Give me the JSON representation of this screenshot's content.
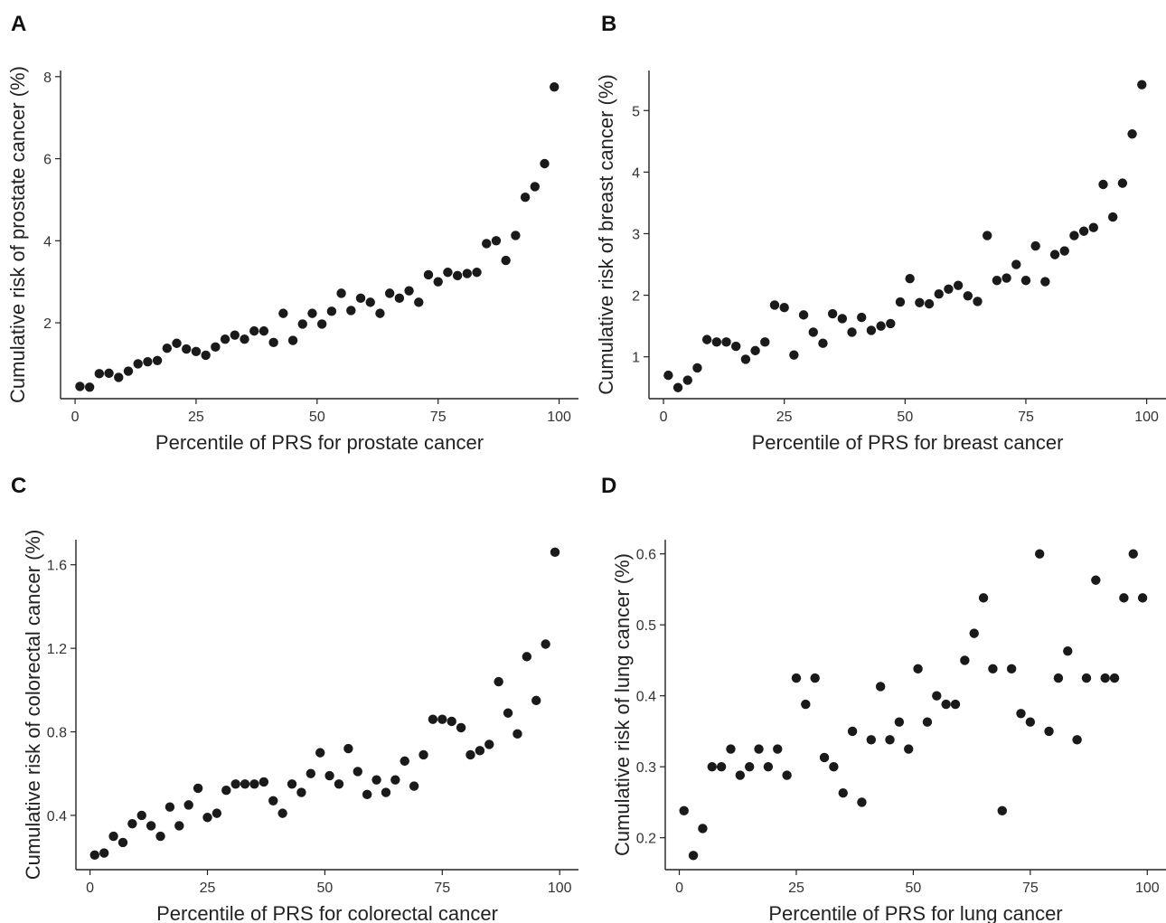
{
  "chart_data": [
    {
      "panel": "A",
      "type": "scatter",
      "xlabel": "Percentile of PRS for prostate cancer",
      "ylabel": "Cumulative risk of prostate cancer (%)",
      "xlim": [
        -3,
        104
      ],
      "ylim": [
        0.15,
        8.15
      ],
      "xticks": [
        0,
        25,
        50,
        75,
        100
      ],
      "yticks": [
        2,
        4,
        6,
        8
      ],
      "grid": false,
      "x": [
        1,
        3,
        5,
        7,
        9,
        11,
        13,
        15,
        17,
        19,
        21,
        23,
        25,
        27,
        29,
        31,
        33,
        35,
        37,
        39,
        41,
        43,
        45,
        47,
        49,
        51,
        53,
        55,
        57,
        59,
        61,
        63,
        65,
        67,
        69,
        71,
        73,
        75,
        77,
        79,
        81,
        83,
        85,
        87,
        89,
        91,
        93,
        95,
        97,
        99
      ],
      "y": [
        0.45,
        0.43,
        0.76,
        0.77,
        0.67,
        0.82,
        1.0,
        1.05,
        1.08,
        1.38,
        1.5,
        1.36,
        1.3,
        1.21,
        1.41,
        1.6,
        1.7,
        1.6,
        1.8,
        1.8,
        1.52,
        2.23,
        1.57,
        1.97,
        2.23,
        1.97,
        2.28,
        2.72,
        2.3,
        2.6,
        2.5,
        2.23,
        2.72,
        2.6,
        2.78,
        2.5,
        3.17,
        3.0,
        3.23,
        3.15,
        3.2,
        3.23,
        3.93,
        4.0,
        3.52,
        4.13,
        5.06,
        5.32,
        5.88,
        7.75
      ]
    },
    {
      "panel": "B",
      "type": "scatter",
      "xlabel": "Percentile of PRS for breast cancer",
      "ylabel": "Cumulative risk of breast cancer (%)",
      "xlim": [
        -3,
        104
      ],
      "ylim": [
        0.32,
        5.65
      ],
      "xticks": [
        0,
        25,
        50,
        75,
        100
      ],
      "yticks": [
        1,
        2,
        3,
        4,
        5
      ],
      "grid": false,
      "x": [
        1,
        3,
        5,
        7,
        9,
        11,
        13,
        15,
        17,
        19,
        21,
        23,
        25,
        27,
        29,
        31,
        33,
        35,
        37,
        39,
        41,
        43,
        45,
        47,
        49,
        51,
        53,
        55,
        57,
        59,
        61,
        63,
        65,
        67,
        69,
        71,
        73,
        75,
        77,
        79,
        81,
        83,
        85,
        87,
        89,
        91,
        93,
        95,
        97,
        99
      ],
      "y": [
        0.7,
        0.5,
        0.62,
        0.82,
        1.28,
        1.24,
        1.24,
        1.17,
        0.96,
        1.1,
        1.24,
        1.84,
        1.8,
        1.03,
        1.68,
        1.4,
        1.22,
        1.7,
        1.62,
        1.4,
        1.64,
        1.43,
        1.5,
        1.54,
        1.89,
        2.27,
        1.88,
        1.86,
        2.02,
        2.1,
        2.16,
        1.99,
        1.9,
        2.97,
        2.24,
        2.28,
        2.5,
        2.24,
        2.8,
        2.22,
        2.66,
        2.72,
        2.97,
        3.04,
        3.1,
        3.8,
        3.27,
        3.82,
        4.62,
        5.42
      ]
    },
    {
      "panel": "C",
      "type": "scatter",
      "xlabel": "Percentile of PRS for colorectal cancer",
      "ylabel": "Cumulative risk of colorectal cancer (%)",
      "xlim": [
        -3,
        104
      ],
      "ylim": [
        0.14,
        1.72
      ],
      "xticks": [
        0,
        25,
        50,
        75,
        100
      ],
      "yticks": [
        0.4,
        0.8,
        1.2,
        1.6
      ],
      "grid": false,
      "x": [
        1,
        3,
        5,
        7,
        9,
        11,
        13,
        15,
        17,
        19,
        21,
        23,
        25,
        27,
        29,
        31,
        33,
        35,
        37,
        39,
        41,
        43,
        45,
        47,
        49,
        51,
        53,
        55,
        57,
        59,
        61,
        63,
        65,
        67,
        69,
        71,
        73,
        75,
        77,
        79,
        81,
        83,
        85,
        87,
        89,
        91,
        93,
        95,
        97,
        99
      ],
      "y": [
        0.21,
        0.22,
        0.3,
        0.27,
        0.36,
        0.4,
        0.35,
        0.3,
        0.44,
        0.35,
        0.45,
        0.53,
        0.39,
        0.41,
        0.52,
        0.55,
        0.55,
        0.55,
        0.56,
        0.47,
        0.41,
        0.55,
        0.51,
        0.6,
        0.7,
        0.59,
        0.55,
        0.72,
        0.61,
        0.5,
        0.57,
        0.51,
        0.57,
        0.66,
        0.54,
        0.69,
        0.86,
        0.86,
        0.85,
        0.82,
        0.69,
        0.71,
        0.74,
        1.04,
        0.89,
        0.79,
        1.16,
        0.95,
        1.22,
        1.66
      ]
    },
    {
      "panel": "D",
      "type": "scatter",
      "xlabel": "Percentile of PRS for lung cancer",
      "ylabel": "Cumulative risk of lung cancer (%)",
      "xlim": [
        -3,
        104
      ],
      "ylim": [
        0.155,
        0.62
      ],
      "xticks": [
        0,
        25,
        50,
        75,
        100
      ],
      "yticks": [
        0.2,
        0.3,
        0.4,
        0.5,
        0.6
      ],
      "grid": false,
      "x": [
        1,
        3,
        5,
        7,
        9,
        11,
        13,
        15,
        17,
        19,
        21,
        23,
        25,
        27,
        29,
        31,
        33,
        35,
        37,
        39,
        41,
        43,
        45,
        47,
        49,
        51,
        53,
        55,
        57,
        59,
        61,
        63,
        65,
        67,
        69,
        71,
        73,
        75,
        77,
        79,
        81,
        83,
        85,
        87,
        89,
        91,
        93,
        95,
        97,
        99
      ],
      "y": [
        0.238,
        0.175,
        0.213,
        0.3,
        0.3,
        0.325,
        0.288,
        0.3,
        0.325,
        0.3,
        0.325,
        0.288,
        0.425,
        0.388,
        0.425,
        0.313,
        0.3,
        0.263,
        0.35,
        0.25,
        0.338,
        0.413,
        0.338,
        0.363,
        0.325,
        0.438,
        0.363,
        0.4,
        0.388,
        0.388,
        0.45,
        0.488,
        0.538,
        0.438,
        0.238,
        0.438,
        0.375,
        0.363,
        0.6,
        0.35,
        0.425,
        0.463,
        0.338,
        0.425,
        0.563,
        0.425,
        0.425,
        0.538,
        0.6,
        0.538
      ]
    }
  ]
}
